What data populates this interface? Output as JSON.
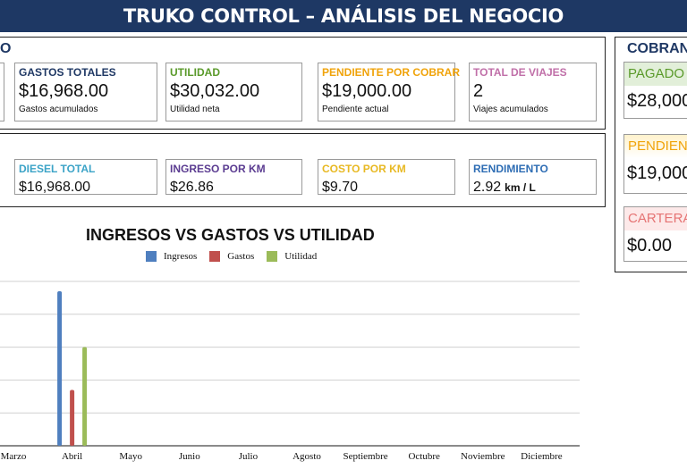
{
  "header": {
    "title": "TRUKO CONTROL – ANÁLISIS DEL NEGOCIO"
  },
  "panel_top": {
    "title_fragment": "O"
  },
  "row1": [
    {
      "label": "GASTOS TOTALES",
      "value": "$16,968.00",
      "sub": "Gastos acumulados",
      "color": "#1f3864"
    },
    {
      "label": "UTILIDAD",
      "value": "$30,032.00",
      "sub": "Utilidad neta",
      "color": "#5a9a2a"
    },
    {
      "label": "PENDIENTE POR COBRAR",
      "value": "$19,000.00",
      "sub": "Pendiente actual",
      "color": "#f0a30a"
    },
    {
      "label": "TOTAL DE VIAJES",
      "value": "2",
      "sub": "Viajes acumulados",
      "color": "#c06fa8"
    }
  ],
  "row2": [
    {
      "label": "DIESEL TOTAL",
      "value": "$16,968.00",
      "color": "#3ba3c7"
    },
    {
      "label": "INGRESO POR KM",
      "value": "$26.86",
      "color": "#5b3c91"
    },
    {
      "label": "COSTO POR KM",
      "value": "$9.70",
      "color": "#e8b923"
    },
    {
      "label": "RENDIMIENTO",
      "value": "2.92",
      "unit": "km / L",
      "color": "#2e6db4"
    }
  ],
  "cobranza": {
    "title": "COBRAN",
    "cards": [
      {
        "label": "PAGADO",
        "value": "$28,000",
        "color": "#5a9a2a",
        "bg": "#e2efd9"
      },
      {
        "label": "PENDIENT",
        "value": "$19,000",
        "color": "#f0a30a",
        "bg": "#fff2cc"
      },
      {
        "label": "CARTERA",
        "value": "$0.00",
        "color": "#e57373",
        "bg": "#fde9e9"
      }
    ]
  },
  "chart_data": {
    "type": "bar",
    "title": "INGRESOS VS GASTOS VS UTILIDAD",
    "categories": [
      "Marzo",
      "Abril",
      "Mayo",
      "Junio",
      "Julio",
      "Agosto",
      "Septiembre",
      "Octubre",
      "Noviembre",
      "Diciembre"
    ],
    "series": [
      {
        "name": "Ingresos",
        "color": "#4f7fbf",
        "values": [
          0,
          47000,
          0,
          0,
          0,
          0,
          0,
          0,
          0,
          0
        ]
      },
      {
        "name": "Gastos",
        "color": "#c0504d",
        "values": [
          0,
          16968,
          0,
          0,
          0,
          0,
          0,
          0,
          0,
          0
        ]
      },
      {
        "name": "Utilidad",
        "color": "#9bbb59",
        "values": [
          0,
          30032,
          0,
          0,
          0,
          0,
          0,
          0,
          0,
          0
        ]
      }
    ],
    "ylim": [
      0,
      50000
    ],
    "grid": true,
    "legend": "top"
  }
}
